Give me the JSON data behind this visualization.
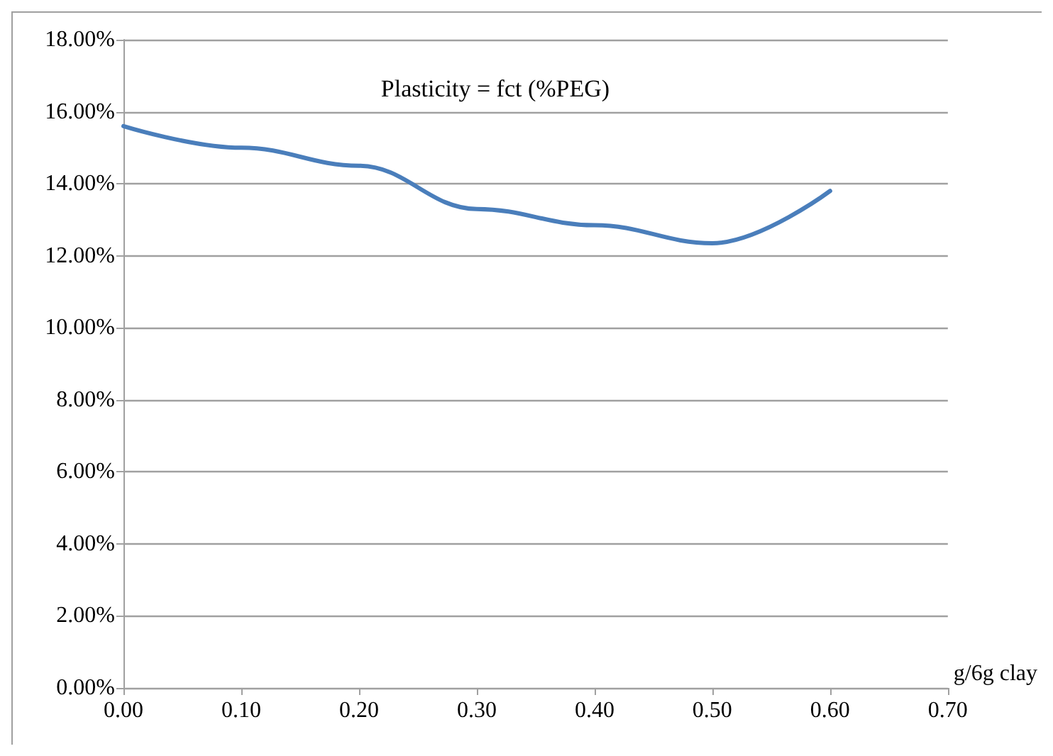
{
  "chart_data": {
    "type": "line",
    "title": "Plasticity = fct (%PEG)",
    "xlabel": "g/6g clay",
    "x": [
      0,
      0.1,
      0.2,
      0.3,
      0.4,
      0.5,
      0.6
    ],
    "series": [
      {
        "color": "#4a7ebb",
        "values": [
          15.6,
          15.0,
          14.5,
          13.3,
          12.85,
          12.35,
          13.8
        ]
      }
    ],
    "xlim": [
      0,
      0.7
    ],
    "xticks": [
      {
        "value": 0,
        "label": "0.00"
      },
      {
        "value": 0.1,
        "label": "0.10"
      },
      {
        "value": 0.2,
        "label": "0.20"
      },
      {
        "value": 0.3,
        "label": "0.30"
      },
      {
        "value": 0.4,
        "label": "0.40"
      },
      {
        "value": 0.5,
        "label": "0.50"
      },
      {
        "value": 0.6,
        "label": "0.60"
      },
      {
        "value": 0.7,
        "label": "0.70"
      }
    ],
    "ylim": [
      0,
      18
    ],
    "yticks": [
      {
        "value": 0,
        "label": "0.00%"
      },
      {
        "value": 2,
        "label": "2.00%"
      },
      {
        "value": 4,
        "label": "4.00%"
      },
      {
        "value": 6,
        "label": "6.00%"
      },
      {
        "value": 8,
        "label": "8.00%"
      },
      {
        "value": 10,
        "label": "10.00%"
      },
      {
        "value": 12,
        "label": "12.00%"
      },
      {
        "value": 14,
        "label": "14.00%"
      },
      {
        "value": 16,
        "label": "16.00%"
      },
      {
        "value": 18,
        "label": "18.00%"
      }
    ],
    "grid": "y",
    "marker": "none",
    "line_style": "solid"
  }
}
